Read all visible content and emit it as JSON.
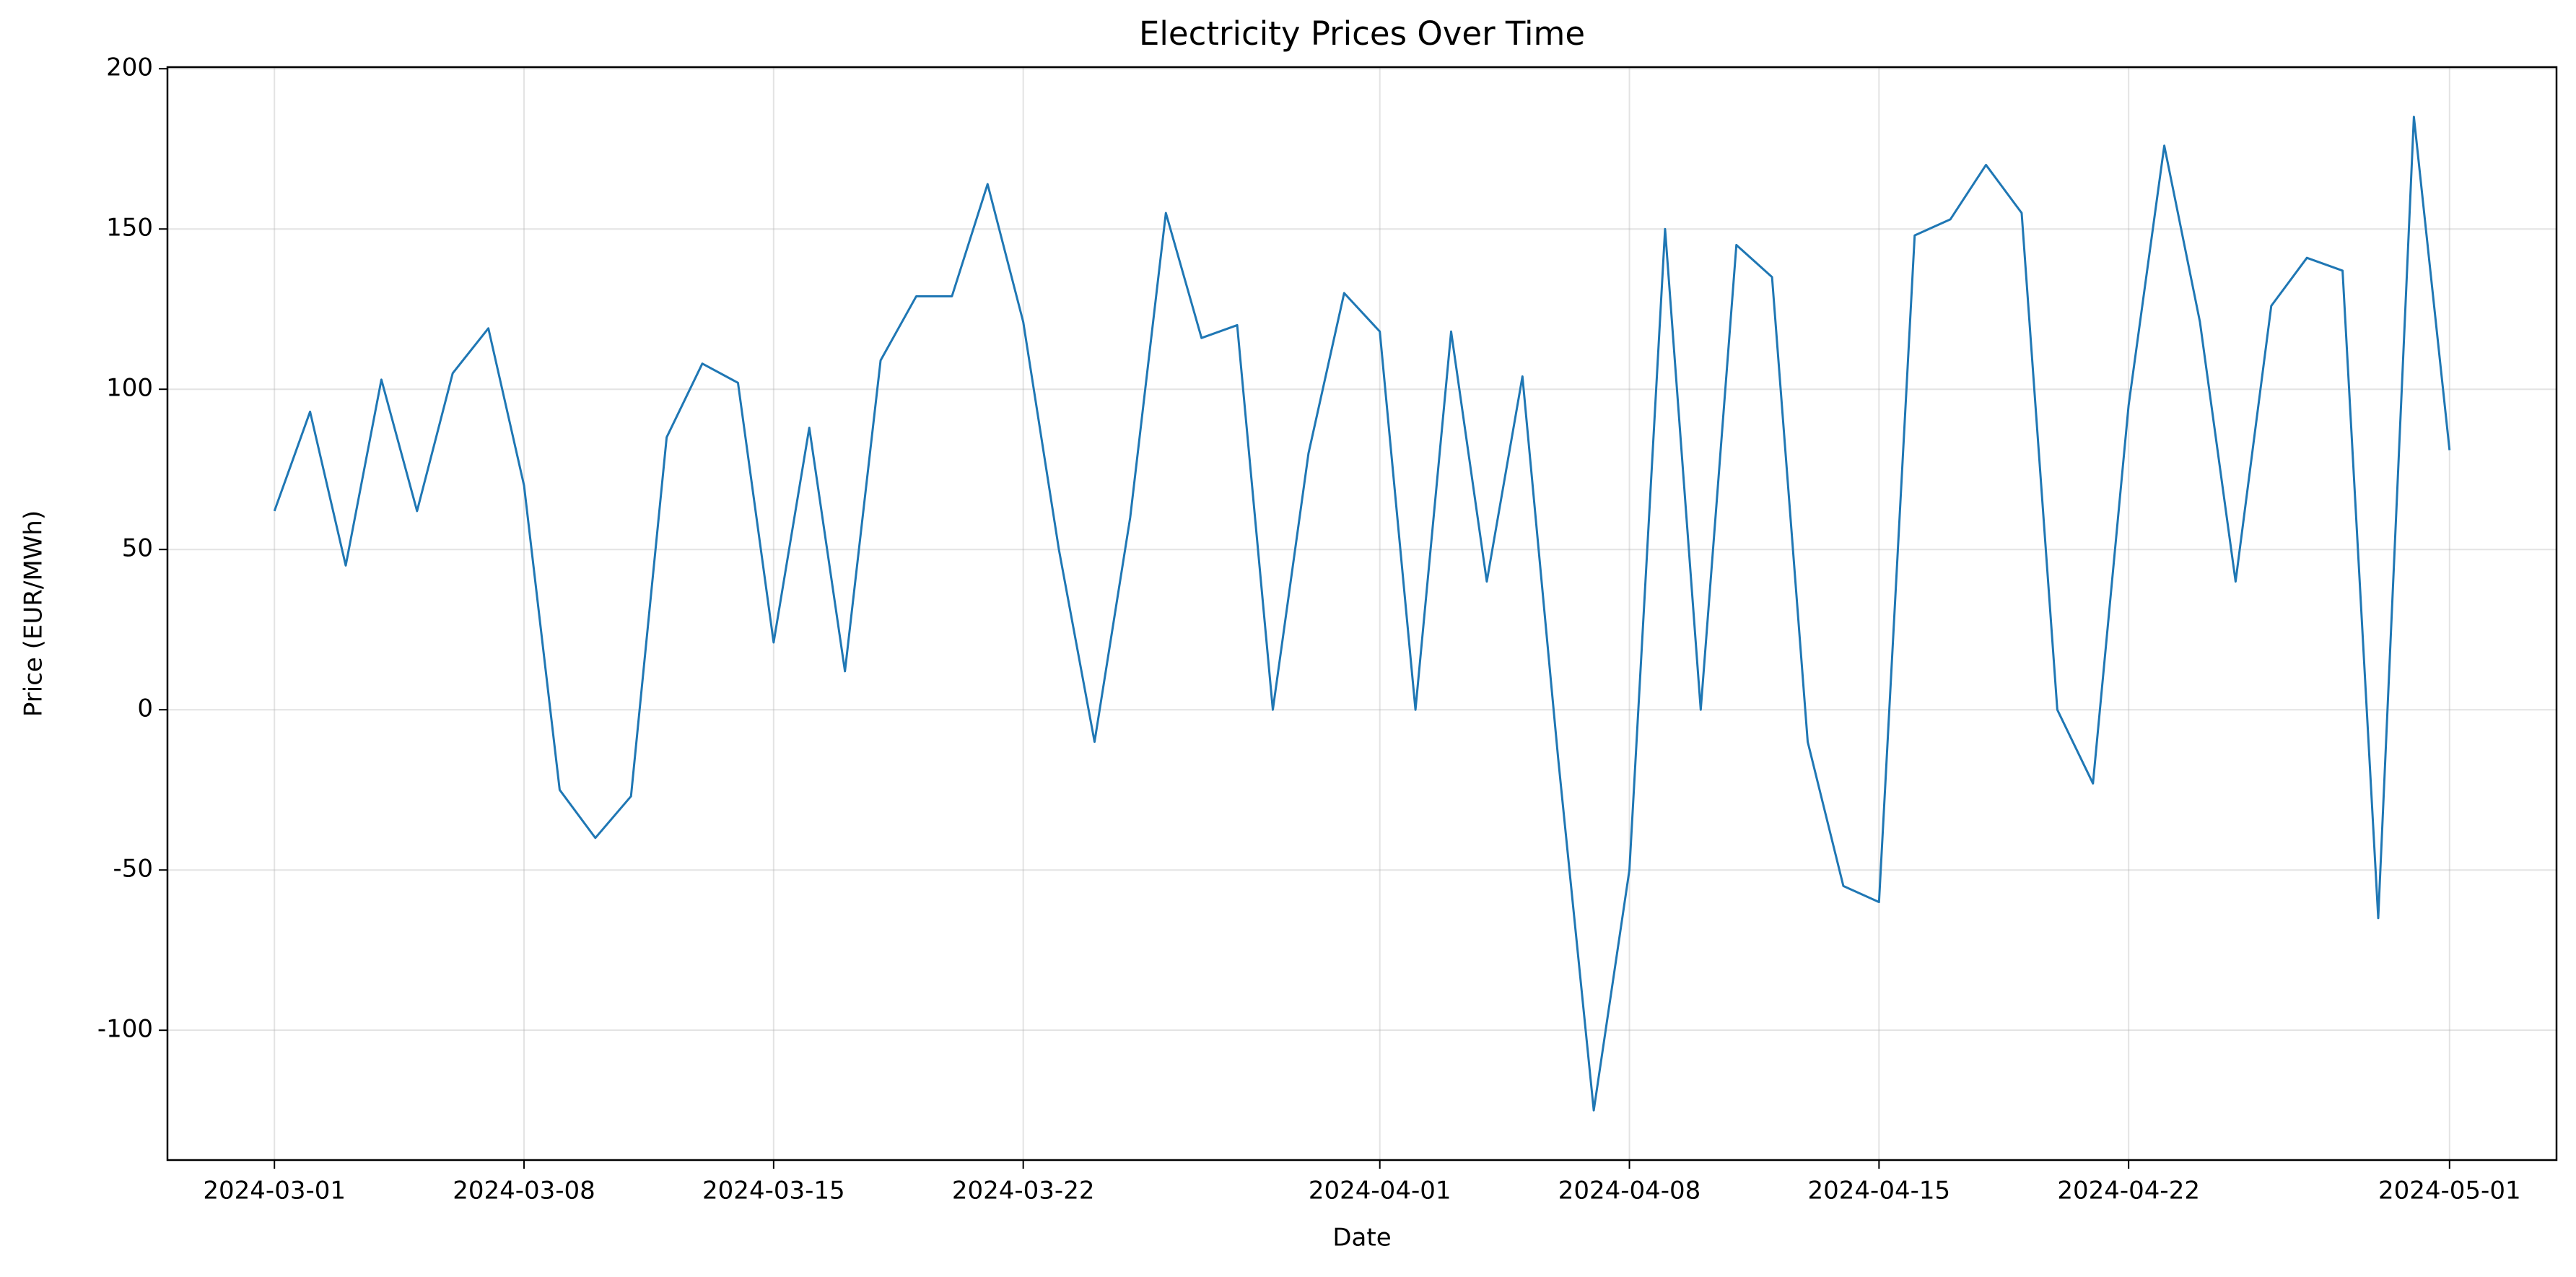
{
  "chart_data": {
    "type": "line",
    "title": "Electricity Prices Over Time",
    "x_label": "Date",
    "y_label": "Price (EUR/MWh)",
    "x": [
      "2024-03-01",
      "2024-03-02",
      "2024-03-03",
      "2024-03-04",
      "2024-03-05",
      "2024-03-06",
      "2024-03-07",
      "2024-03-08",
      "2024-03-09",
      "2024-03-10",
      "2024-03-11",
      "2024-03-12",
      "2024-03-13",
      "2024-03-14",
      "2024-03-15",
      "2024-03-16",
      "2024-03-17",
      "2024-03-18",
      "2024-03-19",
      "2024-03-20",
      "2024-03-21",
      "2024-03-22",
      "2024-03-23",
      "2024-03-24",
      "2024-03-25",
      "2024-03-26",
      "2024-03-27",
      "2024-03-28",
      "2024-03-29",
      "2024-03-30",
      "2024-03-31",
      "2024-04-01",
      "2024-04-02",
      "2024-04-03",
      "2024-04-04",
      "2024-04-05",
      "2024-04-06",
      "2024-04-07",
      "2024-04-08",
      "2024-04-09",
      "2024-04-10",
      "2024-04-11",
      "2024-04-12",
      "2024-04-13",
      "2024-04-14",
      "2024-04-15",
      "2024-04-16",
      "2024-04-17",
      "2024-04-18",
      "2024-04-19",
      "2024-04-20",
      "2024-04-21",
      "2024-04-22",
      "2024-04-23",
      "2024-04-24",
      "2024-04-25",
      "2024-04-26",
      "2024-04-27",
      "2024-04-28",
      "2024-04-29",
      "2024-04-30",
      "2024-05-01"
    ],
    "series": [
      {
        "color": "#1f77b4",
        "values": [
          62,
          93,
          45,
          103,
          62,
          105,
          119,
          70,
          -25,
          -40,
          -27,
          85,
          108,
          102,
          21,
          88,
          12,
          109,
          129,
          129,
          164,
          121,
          50,
          -10,
          60,
          155,
          116,
          120,
          0,
          80,
          130,
          118,
          0,
          118,
          40,
          104,
          -15,
          -125,
          -50,
          150,
          0,
          145,
          135,
          -10,
          -55,
          -60,
          148,
          153,
          170,
          155,
          0,
          -23,
          95,
          176,
          121,
          40,
          126,
          141,
          137,
          -65,
          185,
          81
        ]
      }
    ],
    "xlim": [
      "2024-02-27",
      "2024-05-04"
    ],
    "xticks": [
      "2024-03-01",
      "2024-03-08",
      "2024-03-15",
      "2024-03-22",
      "2024-04-01",
      "2024-04-08",
      "2024-04-15",
      "2024-04-22",
      "2024-05-01"
    ],
    "ylim": [
      -140.5,
      200.5
    ],
    "yticks": [
      -100,
      -50,
      0,
      50,
      100,
      150,
      200
    ],
    "grid": true
  }
}
